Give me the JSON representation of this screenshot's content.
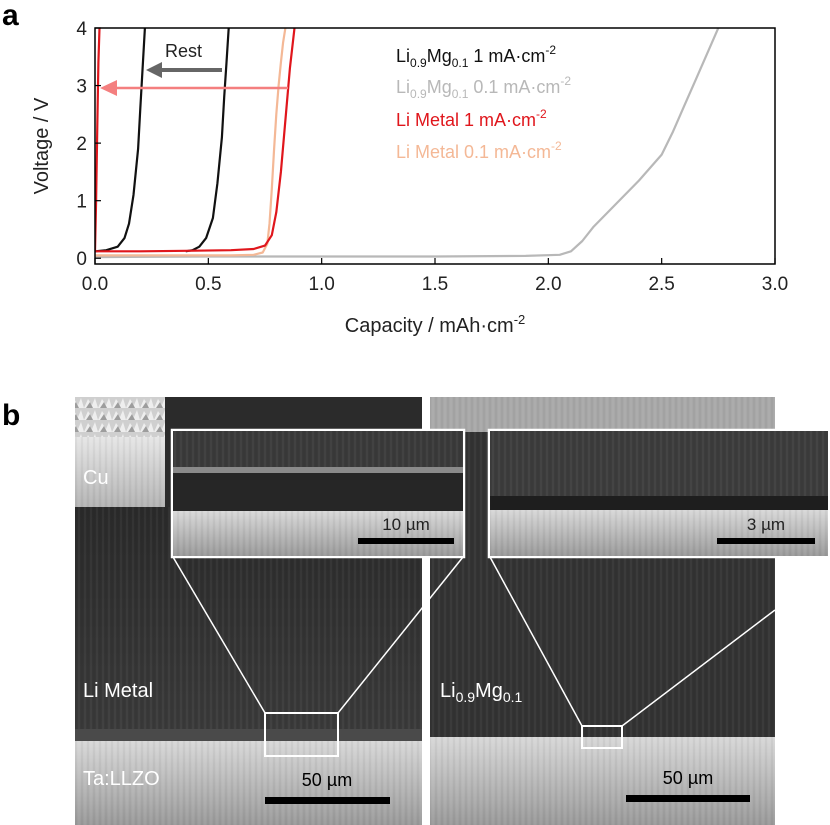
{
  "chart_data": {
    "type": "line",
    "panel_label": "a",
    "xlabel": "Capacity / mAh·cm",
    "xlabel_sup": "-2",
    "ylabel": "Voltage / V",
    "xlim": [
      0,
      3.0
    ],
    "ylim": [
      -0.1,
      4
    ],
    "x_ticks": [
      "0.0",
      "0.5",
      "1.0",
      "1.5",
      "2.0",
      "2.5",
      "3.0"
    ],
    "y_ticks": [
      "0",
      "1",
      "2",
      "3",
      "4"
    ],
    "grid": false,
    "legend_position": "top-right",
    "legend": [
      {
        "base": "Li",
        "sub1": "0.9",
        "mid": "Mg",
        "sub2": "0.1",
        "rest": " 1 mA·cm",
        "sup": "-2",
        "color": "#111111"
      },
      {
        "base": "Li",
        "sub1": "0.9",
        "mid": "Mg",
        "sub2": "0.1",
        "rest": " 0.1 mA·cm",
        "sup": "-2",
        "color": "#b8b8b8"
      },
      {
        "base": "Li Metal 1 mA·cm",
        "sup": "-2",
        "color": "#e0161c"
      },
      {
        "base": "Li Metal 0.1 mA·cm",
        "sup": "-2",
        "color": "#f4b896"
      }
    ],
    "annotations": [
      {
        "text": "Rest",
        "color": "#555555"
      }
    ],
    "series": [
      {
        "color": "#b8b8b8",
        "x": [
          0.0,
          0.5,
          1.0,
          1.5,
          1.9,
          2.05,
          2.1,
          2.15,
          2.2,
          2.3,
          2.4,
          2.5,
          2.55,
          2.6,
          2.65,
          2.7,
          2.75
        ],
        "y": [
          0.02,
          0.03,
          0.03,
          0.03,
          0.04,
          0.06,
          0.12,
          0.3,
          0.55,
          0.95,
          1.35,
          1.8,
          2.2,
          2.65,
          3.1,
          3.55,
          4.0
        ]
      },
      {
        "color": "#f4b896",
        "x": [
          0.0,
          0.3,
          0.6,
          0.7,
          0.74,
          0.76,
          0.77,
          0.78,
          0.79,
          0.8,
          0.81,
          0.82,
          0.83,
          0.84
        ],
        "y": [
          0.05,
          0.05,
          0.05,
          0.06,
          0.1,
          0.25,
          0.6,
          1.2,
          1.9,
          2.5,
          3.0,
          3.4,
          3.75,
          4.0
        ]
      },
      {
        "color": "#111111",
        "x": [
          0.0,
          0.05,
          0.1,
          0.13,
          0.15,
          0.17,
          0.19,
          0.2,
          0.21,
          0.22
        ],
        "y": [
          0.12,
          0.14,
          0.2,
          0.35,
          0.6,
          1.1,
          1.9,
          2.6,
          3.3,
          4.0
        ]
      },
      {
        "color": "#111111",
        "x": [
          0.4,
          0.43,
          0.46,
          0.49,
          0.52,
          0.54,
          0.56,
          0.57,
          0.58,
          0.59
        ],
        "y": [
          0.12,
          0.14,
          0.2,
          0.35,
          0.7,
          1.3,
          2.1,
          2.8,
          3.4,
          4.0
        ]
      },
      {
        "color": "#e0161c",
        "x": [
          0.0,
          0.2,
          0.4,
          0.6,
          0.7,
          0.75,
          0.78,
          0.8,
          0.82,
          0.84,
          0.86,
          0.88
        ],
        "y": [
          0.12,
          0.12,
          0.13,
          0.14,
          0.16,
          0.22,
          0.4,
          0.8,
          1.5,
          2.4,
          3.3,
          4.0
        ]
      },
      {
        "color": "#e0161c",
        "x": [
          0.0,
          0.005,
          0.01,
          0.015,
          0.02
        ],
        "y": [
          0.12,
          1.0,
          2.3,
          3.4,
          4.0
        ]
      }
    ]
  },
  "panel_b": {
    "label": "b",
    "left": {
      "layers": [
        "Cu",
        "Li Metal",
        "Ta:LLZO"
      ],
      "scalebar": "50 µm",
      "inset_scalebar": "10 µm"
    },
    "right": {
      "layer_base": "Li",
      "layer_sub1": "0.9",
      "layer_mid": "Mg",
      "layer_sub2": "0.1",
      "scalebar": "50 µm",
      "inset_scalebar": "3 µm"
    }
  }
}
